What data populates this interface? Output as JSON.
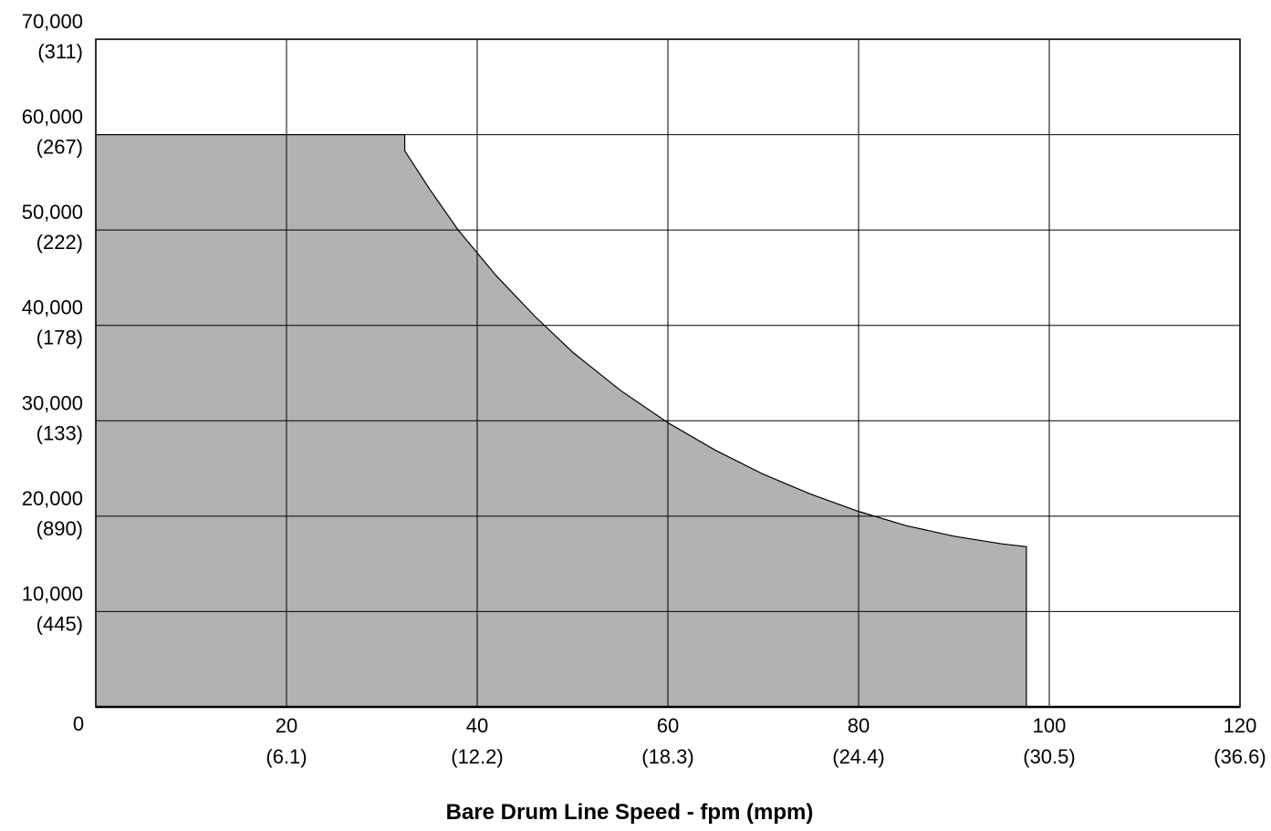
{
  "chart_data": {
    "type": "area",
    "title": "",
    "xlabel": "Bare Drum Line Speed  -  fpm (mpm)",
    "ylabel": "",
    "xlim": [
      0,
      120
    ],
    "ylim": [
      0,
      70000
    ],
    "grid": true,
    "x_ticks": [
      {
        "value": 0,
        "label": "0",
        "sublabel": ""
      },
      {
        "value": 20,
        "label": "20",
        "sublabel": "(6.1)"
      },
      {
        "value": 40,
        "label": "40",
        "sublabel": "(12.2)"
      },
      {
        "value": 60,
        "label": "60",
        "sublabel": "(18.3)"
      },
      {
        "value": 80,
        "label": "80",
        "sublabel": "(24.4)"
      },
      {
        "value": 100,
        "label": "100",
        "sublabel": "(30.5)"
      },
      {
        "value": 120,
        "label": "120",
        "sublabel": "(36.6)"
      }
    ],
    "y_ticks": [
      {
        "value": 10000,
        "label": "10,000",
        "sublabel": "(445)"
      },
      {
        "value": 20000,
        "label": "20,000",
        "sublabel": "(890)"
      },
      {
        "value": 30000,
        "label": "30,000",
        "sublabel": "(133)"
      },
      {
        "value": 40000,
        "label": "40,000",
        "sublabel": "(178)"
      },
      {
        "value": 50000,
        "label": "50,000",
        "sublabel": "(222)"
      },
      {
        "value": 60000,
        "label": "60,000",
        "sublabel": "(267)"
      },
      {
        "value": 70000,
        "label": "70,000",
        "sublabel": "(311)"
      }
    ],
    "series": [
      {
        "x": [
          0,
          32.4,
          32.4,
          35,
          38,
          42,
          46,
          50,
          55,
          60,
          65,
          70,
          75,
          80,
          85,
          90,
          95,
          97.6,
          97.6
        ],
        "y": [
          60000,
          60000,
          58300,
          54300,
          50000,
          45200,
          41000,
          37200,
          33200,
          29800,
          26900,
          24400,
          22300,
          20500,
          19000,
          17900,
          17100,
          16800,
          0
        ],
        "fill": "#b2b2b2",
        "stroke": "#000000"
      }
    ]
  }
}
